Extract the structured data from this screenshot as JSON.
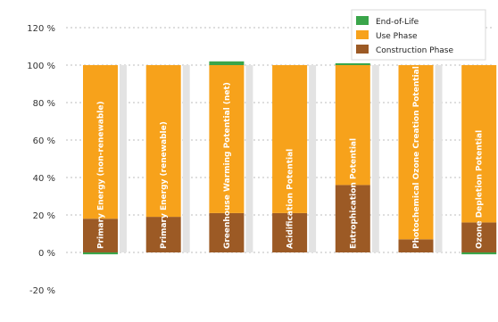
{
  "chart_data": {
    "type": "bar",
    "stacked": true,
    "title": "",
    "xlabel": "",
    "ylabel": "",
    "ylim": [
      -20,
      120
    ],
    "yticks": [
      -20,
      0,
      20,
      40,
      60,
      80,
      100,
      120
    ],
    "ytick_suffix": " %",
    "grid": true,
    "legend": "top-right",
    "categories": [
      "Primary Energy (non-renewable)",
      "Primary Energy (renewable)",
      "Greenhouse Warming Potential (net)",
      "Acidification Potential",
      "Eutrophication Potential",
      "Photochemical Ozone Creation Potential",
      "Ozone Depletion Potential"
    ],
    "series": [
      {
        "name": "End-of-Life",
        "color": "#3aa54a",
        "values": [
          -1,
          0,
          2,
          0,
          1,
          0,
          -1
        ]
      },
      {
        "name": "Use Phase",
        "color": "#f7a21b",
        "values": [
          82,
          81,
          79,
          79,
          64,
          93,
          84
        ]
      },
      {
        "name": "Construction Phase",
        "color": "#9c5a25",
        "values": [
          18,
          19,
          21,
          21,
          36,
          7,
          16
        ]
      }
    ]
  }
}
